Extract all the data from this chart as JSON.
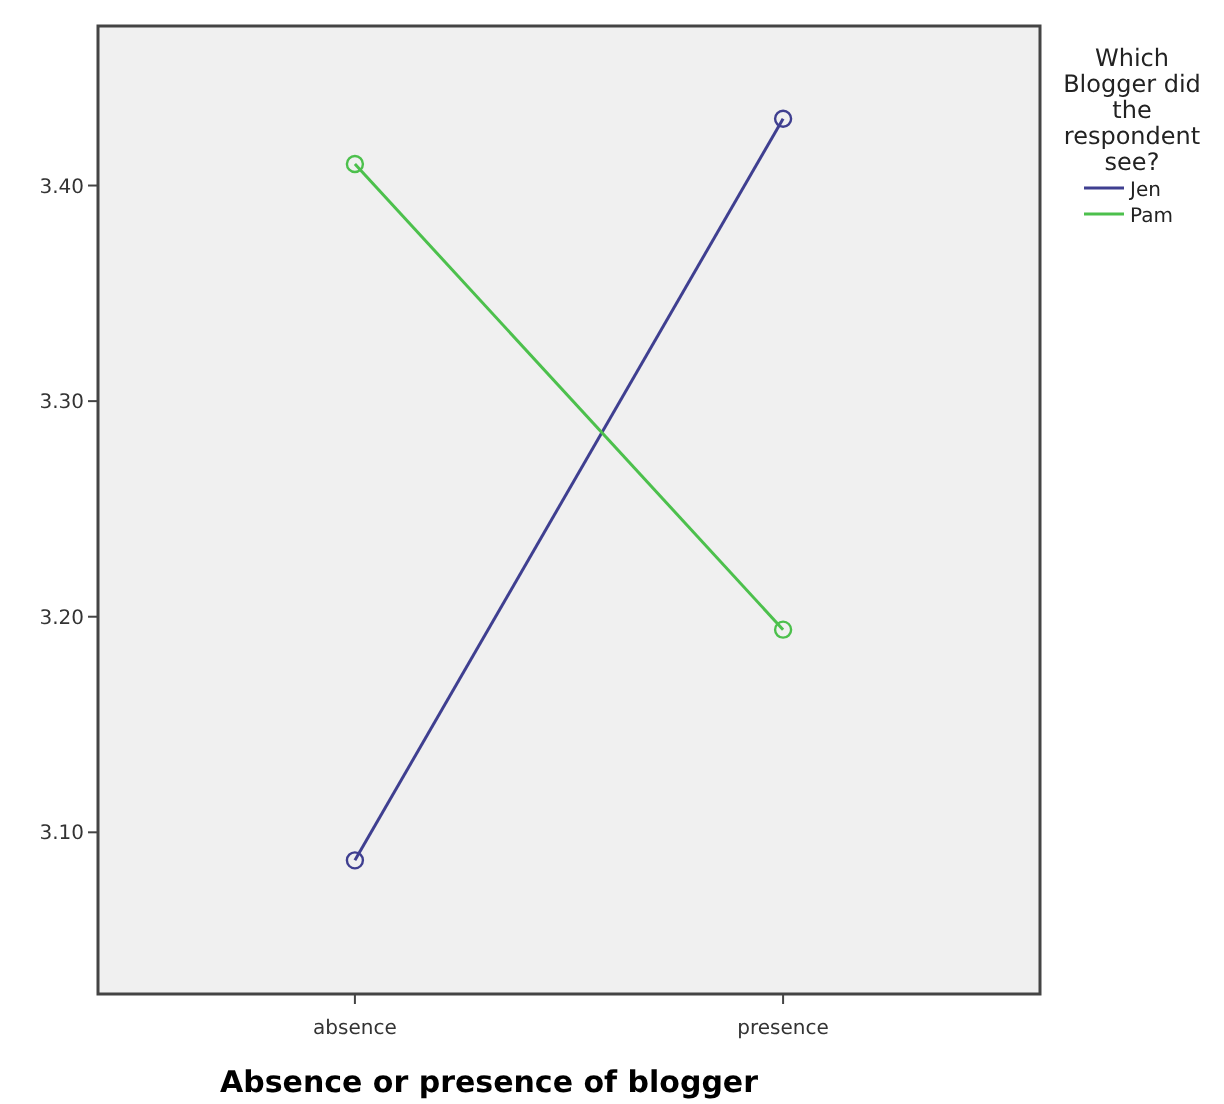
{
  "chart_data": {
    "type": "line",
    "xlabel": "Absence or presence of blogger",
    "legend_title": "Which Blogger did the respondent see?",
    "categories": [
      "absence",
      "presence"
    ],
    "series": [
      {
        "name": "Jen",
        "color": "#3f3f90",
        "values": [
          3.087,
          3.431
        ]
      },
      {
        "name": "Pam",
        "color": "#4cc04c",
        "values": [
          3.41,
          3.194
        ]
      }
    ],
    "ylim": [
      3.025,
      3.474
    ],
    "yticks": [
      {
        "value": 3.1,
        "label": "3.10"
      },
      {
        "value": 3.2,
        "label": "3.20"
      },
      {
        "value": 3.3,
        "label": "3.30"
      },
      {
        "value": 3.4,
        "label": "3.40"
      }
    ],
    "grid": false,
    "legend": "right",
    "marker": "circle",
    "line_style": "solid"
  }
}
